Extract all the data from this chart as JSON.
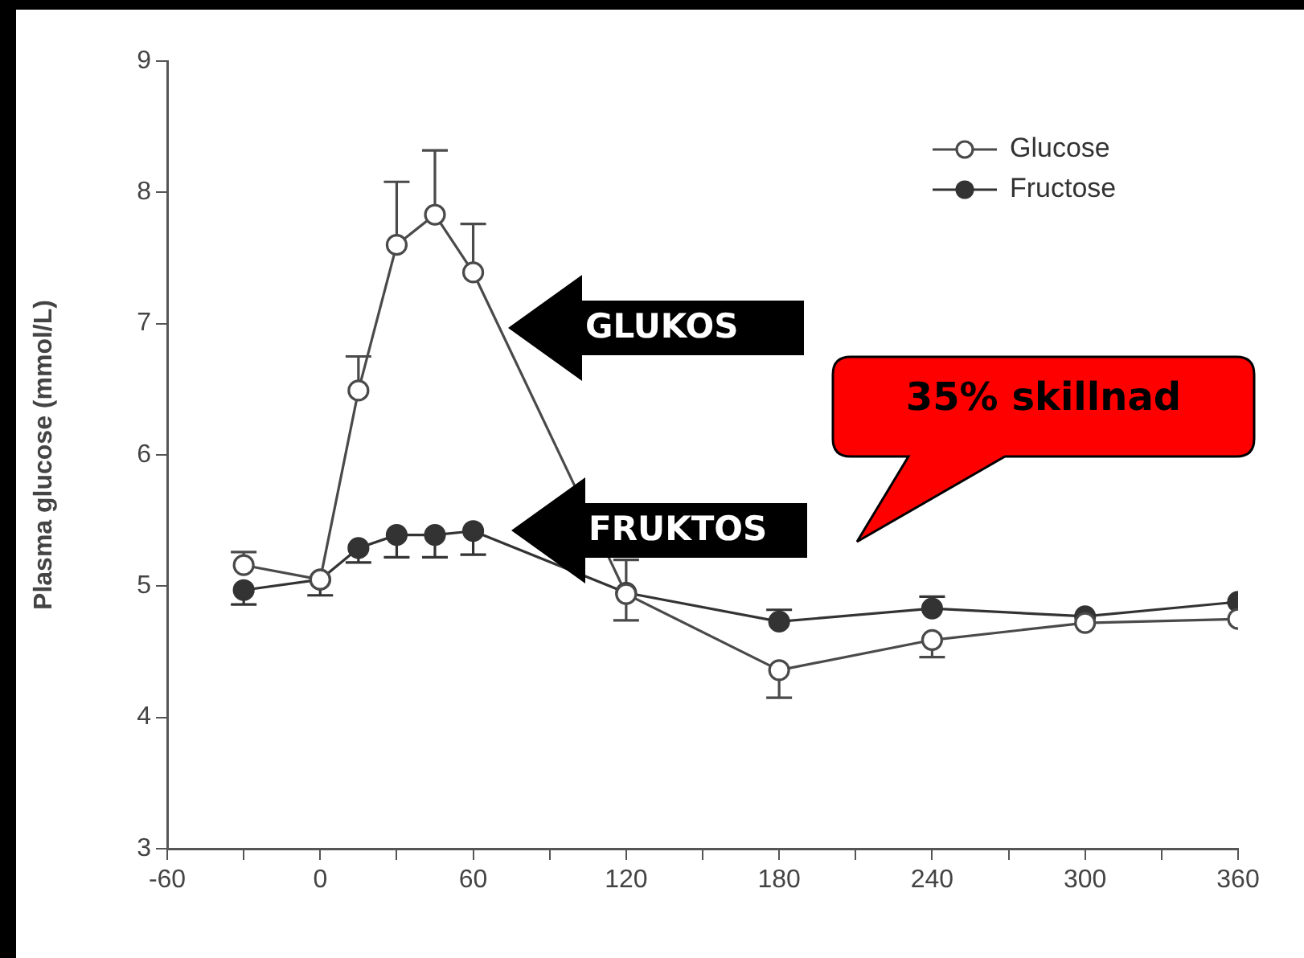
{
  "chart_data": {
    "type": "line",
    "ylabel": "Plasma glucose (mmol/L)",
    "x": [
      -30,
      0,
      15,
      30,
      45,
      60,
      120,
      180,
      240,
      300,
      360
    ],
    "xlim": [
      -60,
      360
    ],
    "xticks": [
      -60,
      {
        "value": -30,
        "label": null
      },
      0,
      {
        "value": 30,
        "label": null
      },
      60,
      {
        "value": 90,
        "label": null
      },
      120,
      {
        "value": 150,
        "label": null
      },
      180,
      {
        "value": 210,
        "label": null
      },
      240,
      {
        "value": 270,
        "label": null
      },
      300,
      {
        "value": 330,
        "label": null
      },
      360
    ],
    "ylim": [
      3,
      9
    ],
    "yticks": [
      3,
      4,
      5,
      6,
      7,
      8,
      9
    ],
    "series": [
      {
        "name": "Glucose",
        "color": "#4a4a4a",
        "values": [
          5.16,
          5.05,
          6.49,
          7.6,
          7.83,
          7.39,
          4.94,
          4.36,
          4.59,
          4.72,
          4.75
        ],
        "errors": [
          [
            5.16,
            5.26
          ],
          null,
          [
            6.49,
            6.75
          ],
          [
            7.6,
            8.08
          ],
          [
            7.83,
            8.32
          ],
          [
            7.39,
            7.76
          ],
          [
            4.74,
            5.2
          ],
          [
            4.15,
            4.36
          ],
          [
            4.46,
            4.59
          ],
          null,
          null
        ]
      },
      {
        "name": "Fructose",
        "color": "#333333",
        "values": [
          4.97,
          5.05,
          5.29,
          5.39,
          5.39,
          5.42,
          4.95,
          4.73,
          4.83,
          4.77,
          4.88
        ],
        "errors": [
          [
            4.86,
            4.97
          ],
          [
            4.93,
            5.05
          ],
          [
            5.18,
            5.29
          ],
          [
            5.22,
            5.39
          ],
          [
            5.22,
            5.39
          ],
          [
            5.24,
            5.42
          ],
          null,
          [
            4.73,
            4.82
          ],
          [
            4.83,
            4.92
          ],
          null,
          null
        ]
      }
    ],
    "annotations": [
      "GLUKOS",
      "FRUKTOS",
      "35% skillnad"
    ],
    "marker": "circle",
    "line_style": "solid",
    "legend": "top right",
    "grid": false
  }
}
